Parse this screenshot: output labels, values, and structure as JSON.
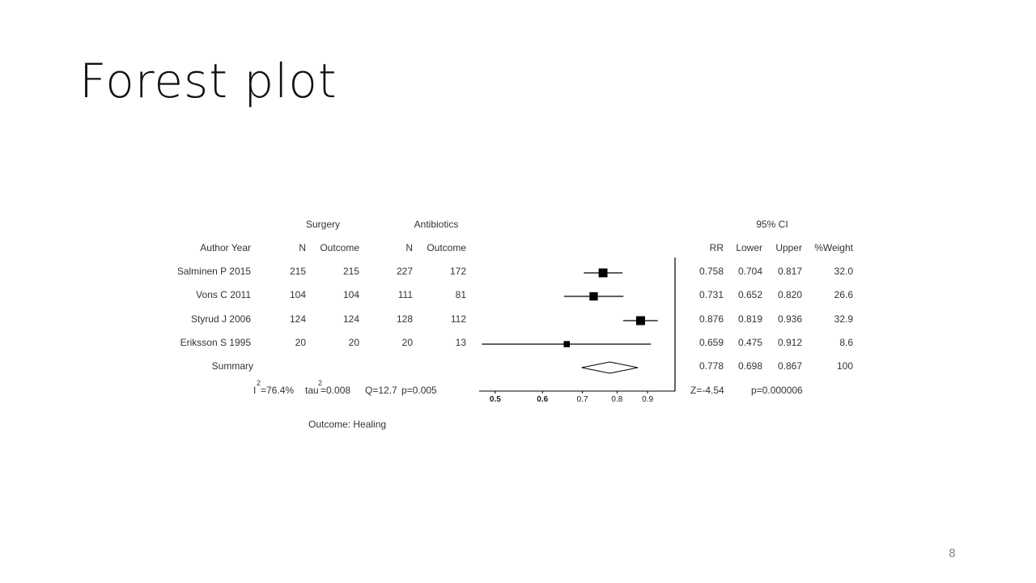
{
  "slide": {
    "title": "Forest plot",
    "page_number": "8"
  },
  "table": {
    "group_headers": {
      "surgery": "Surgery",
      "antibiotics": "Antibiotics",
      "ci": "95% CI"
    },
    "columns": {
      "author_year": "Author Year",
      "surgery_n": "N",
      "surgery_outcome": "Outcome",
      "antibiotics_n": "N",
      "antibiotics_outcome": "Outcome",
      "rr": "RR",
      "lower": "Lower",
      "upper": "Upper",
      "weight": "%Weight"
    },
    "rows": [
      {
        "study": "Salminen P 2015",
        "s_n": "215",
        "s_out": "215",
        "a_n": "227",
        "a_out": "172",
        "rr": "0.758",
        "lower": "0.704",
        "upper": "0.817",
        "weight": "32.0"
      },
      {
        "study": "Vons C 2011",
        "s_n": "104",
        "s_out": "104",
        "a_n": "111",
        "a_out": "81",
        "rr": "0.731",
        "lower": "0.652",
        "upper": "0.820",
        "weight": "26.6"
      },
      {
        "study": "Styrud J 2006",
        "s_n": "124",
        "s_out": "124",
        "a_n": "128",
        "a_out": "112",
        "rr": "0.876",
        "lower": "0.819",
        "upper": "0.936",
        "weight": "32.9"
      },
      {
        "study": "Eriksson S 1995",
        "s_n": "20",
        "s_out": "20",
        "a_n": "20",
        "a_out": "13",
        "rr": "0.659",
        "lower": "0.475",
        "upper": "0.912",
        "weight": "8.6"
      }
    ],
    "summary": {
      "label": "Summary",
      "rr": "0.778",
      "lower": "0.698",
      "upper": "0.867",
      "weight": "100"
    },
    "stats": {
      "i2_base": "I",
      "i2_sup": "2",
      "i2_value": "=76.4%",
      "tau_base": "tau",
      "tau_sup": "2",
      "tau_value": "=0.008",
      "q": "Q=12.7",
      "p_het": "p=0.005",
      "z": "Z=-4.54",
      "p_overall": "p=0.000006"
    },
    "footnote": "Outcome: Healing"
  },
  "chart_data": {
    "type": "forest",
    "x_scale": "log",
    "xlim": [
      0.47,
      0.94
    ],
    "reference_line": 1,
    "ticks": [
      0.5,
      0.6,
      0.7,
      0.8,
      0.9
    ],
    "tick_labels": [
      "0.5",
      "0.6",
      "0.7",
      "0.8",
      "0.9"
    ],
    "studies": [
      {
        "name": "Salminen P 2015",
        "rr": 0.758,
        "lower": 0.704,
        "upper": 0.817,
        "weight": 32.0
      },
      {
        "name": "Vons C 2011",
        "rr": 0.731,
        "lower": 0.652,
        "upper": 0.82,
        "weight": 26.6
      },
      {
        "name": "Styrud J 2006",
        "rr": 0.876,
        "lower": 0.819,
        "upper": 0.936,
        "weight": 32.9
      },
      {
        "name": "Eriksson S 1995",
        "rr": 0.659,
        "lower": 0.475,
        "upper": 0.912,
        "weight": 8.6
      }
    ],
    "summary": {
      "rr": 0.778,
      "lower": 0.698,
      "upper": 0.867
    },
    "colors": {
      "ink": "#000000"
    }
  }
}
